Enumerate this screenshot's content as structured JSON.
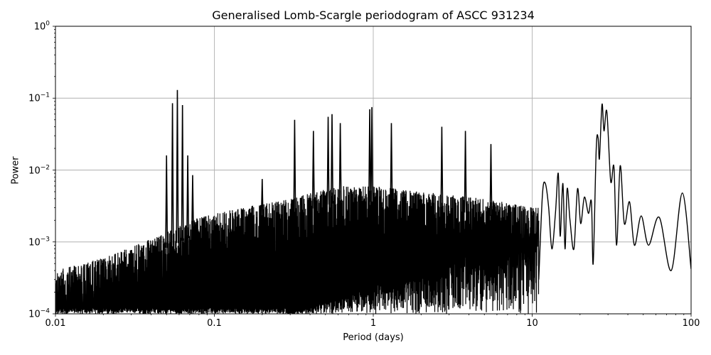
{
  "chart_data": {
    "type": "line",
    "title": "Generalised Lomb-Scargle periodogram of ASCC 931234",
    "xlabel": "Period (days)",
    "ylabel": "Power",
    "xscale": "log",
    "yscale": "log",
    "xlim": [
      0.01,
      100
    ],
    "ylim": [
      0.0001,
      1
    ],
    "grid": true,
    "legend": null,
    "line_color": "#000000",
    "x_ticks": [
      {
        "value": 0.01,
        "label": "0.01"
      },
      {
        "value": 0.1,
        "label": "0.1"
      },
      {
        "value": 1,
        "label": "1"
      },
      {
        "value": 10,
        "label": "10"
      },
      {
        "value": 100,
        "label": "100"
      }
    ],
    "y_ticks": [
      {
        "value": 1,
        "base": "10",
        "exp": "0"
      },
      {
        "value": 0.1,
        "base": "10",
        "exp": "−1"
      },
      {
        "value": 0.01,
        "base": "10",
        "exp": "−2"
      },
      {
        "value": 0.001,
        "base": "10",
        "exp": "−3"
      },
      {
        "value": 0.0001,
        "base": "10",
        "exp": "−4"
      }
    ],
    "notable_peaks": [
      {
        "period": 0.0545,
        "power": 0.085
      },
      {
        "period": 0.0585,
        "power": 0.13
      },
      {
        "period": 0.063,
        "power": 0.08
      },
      {
        "period": 0.068,
        "power": 0.016
      },
      {
        "period": 0.05,
        "power": 0.016
      },
      {
        "period": 0.073,
        "power": 0.0085
      },
      {
        "period": 0.2,
        "power": 0.0075
      },
      {
        "period": 0.32,
        "power": 0.05
      },
      {
        "period": 0.42,
        "power": 0.035
      },
      {
        "period": 0.52,
        "power": 0.055
      },
      {
        "period": 0.55,
        "power": 0.06
      },
      {
        "period": 0.62,
        "power": 0.045
      },
      {
        "period": 0.95,
        "power": 0.07
      },
      {
        "period": 0.98,
        "power": 0.075
      },
      {
        "period": 1.3,
        "power": 0.045
      },
      {
        "period": 2.7,
        "power": 0.04
      },
      {
        "period": 3.8,
        "power": 0.035
      },
      {
        "period": 5.5,
        "power": 0.023
      }
    ],
    "smooth_tail": {
      "note": "long-period smooth section (period, power) samples",
      "points": [
        [
          11.0,
          0.0003
        ],
        [
          11.6,
          0.0045
        ],
        [
          12.1,
          0.0065
        ],
        [
          12.7,
          0.003
        ],
        [
          13.3,
          0.0008
        ],
        [
          14.0,
          0.0025
        ],
        [
          14.6,
          0.009
        ],
        [
          15.0,
          0.0012
        ],
        [
          15.6,
          0.0065
        ],
        [
          16.1,
          0.0008
        ],
        [
          16.6,
          0.0055
        ],
        [
          17.3,
          0.002
        ],
        [
          18.3,
          0.0008
        ],
        [
          19.3,
          0.0055
        ],
        [
          20.2,
          0.0018
        ],
        [
          21.3,
          0.0042
        ],
        [
          22.6,
          0.0025
        ],
        [
          23.6,
          0.0036
        ],
        [
          24.2,
          0.0005
        ],
        [
          25.3,
          0.02
        ],
        [
          26.0,
          0.028
        ],
        [
          26.5,
          0.0145
        ],
        [
          27.5,
          0.082
        ],
        [
          28.3,
          0.035
        ],
        [
          29.5,
          0.065
        ],
        [
          31.2,
          0.007
        ],
        [
          32.7,
          0.011
        ],
        [
          34.0,
          0.0009
        ],
        [
          35.8,
          0.0115
        ],
        [
          38.0,
          0.0018
        ],
        [
          41.0,
          0.0036
        ],
        [
          44.0,
          0.0009
        ],
        [
          48.5,
          0.0023
        ],
        [
          54.0,
          0.0009
        ],
        [
          63.0,
          0.0022
        ],
        [
          75.0,
          0.0004
        ],
        [
          88.0,
          0.0048
        ],
        [
          100.0,
          0.00042
        ]
      ]
    },
    "noise_envelope": {
      "note": "approx upper envelope of dense noisy region (period, power)",
      "points": [
        [
          0.01,
          0.0004
        ],
        [
          0.02,
          0.0006
        ],
        [
          0.04,
          0.0011
        ],
        [
          0.08,
          0.0022
        ],
        [
          0.15,
          0.003
        ],
        [
          0.3,
          0.004
        ],
        [
          0.6,
          0.006
        ],
        [
          1.0,
          0.006
        ],
        [
          2.0,
          0.005
        ],
        [
          5.0,
          0.004
        ],
        [
          10.0,
          0.003
        ]
      ]
    }
  }
}
